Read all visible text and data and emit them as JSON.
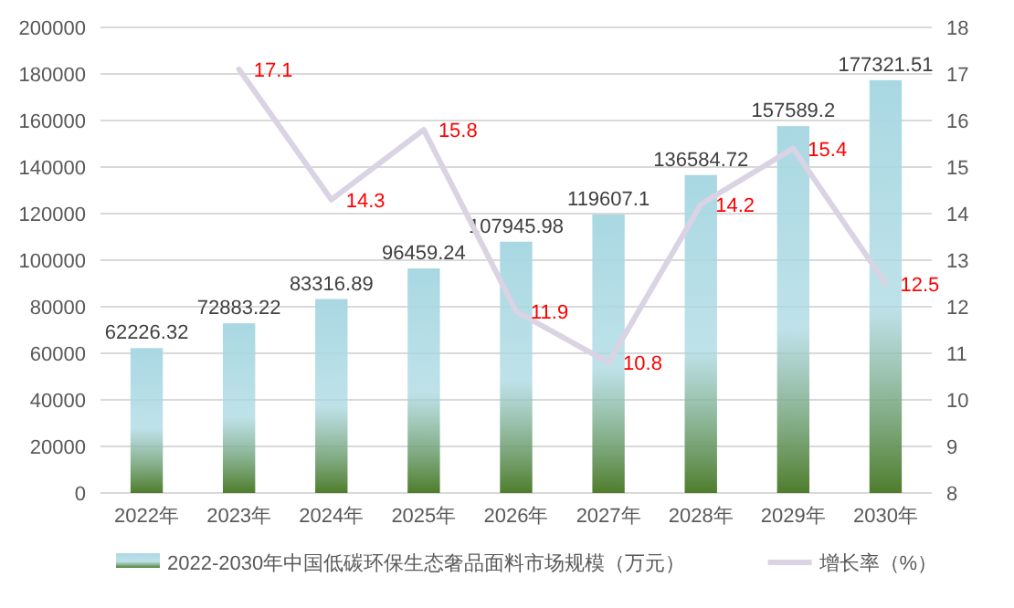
{
  "chart_data": {
    "type": "bar",
    "categories": [
      "2022年",
      "2023年",
      "2024年",
      "2025年",
      "2026年",
      "2027年",
      "2028年",
      "2029年",
      "2030年"
    ],
    "series": [
      {
        "name": "2022-2030年中国低碳环保生态奢品面料市场规模（万元）",
        "color": "#a9d8e2",
        "values": [
          62226.32,
          72883.22,
          83316.89,
          96459.24,
          107945.98,
          119607.1,
          136584.72,
          157589.2,
          177321.51
        ]
      },
      {
        "name": "增长率（%）",
        "type": "line",
        "axis": "y2",
        "color": "#d9d3e4",
        "values": [
          null,
          17.1,
          14.3,
          15.8,
          11.9,
          10.8,
          14.2,
          15.4,
          12.5
        ]
      }
    ],
    "ylim": [
      0,
      200000
    ],
    "yticks": [
      0,
      20000,
      40000,
      60000,
      80000,
      100000,
      120000,
      140000,
      160000,
      180000,
      200000
    ],
    "y2lim": [
      8,
      18
    ],
    "y2ticks": [
      8,
      9,
      10,
      11,
      12,
      13,
      14,
      15,
      16,
      17,
      18
    ],
    "grid": "y",
    "legend": "bottom",
    "data_labels": true,
    "marker": "none"
  }
}
